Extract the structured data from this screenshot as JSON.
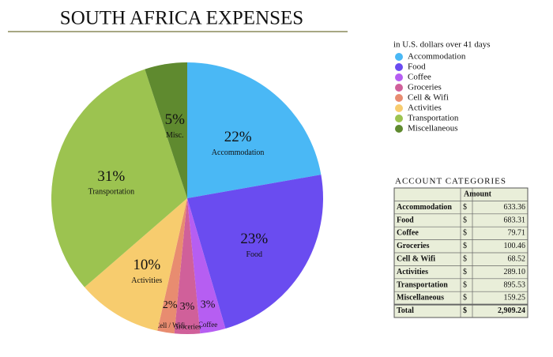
{
  "chart_data": {
    "type": "pie",
    "title": "SOUTH AFRICA EXPENSES",
    "subtitle": "in U.S. dollars over 41 days",
    "categories": [
      "Accommodation",
      "Food",
      "Coffee",
      "Groceries",
      "Cell & Wifi",
      "Activities",
      "Transportation",
      "Miscellaneous"
    ],
    "slice_labels": [
      "Accommodation",
      "Food",
      "Coffee",
      "Groceries",
      "Cell / Wifi",
      "Activities",
      "Transportation",
      "Misc."
    ],
    "values": [
      22,
      23,
      3,
      3,
      2,
      10,
      31,
      5
    ],
    "value_labels": [
      "22%",
      "23%",
      "3%",
      "3%",
      "2%",
      "10%",
      "31%",
      "5%"
    ],
    "colors": [
      "#4ab8f5",
      "#6a4cf0",
      "#b65ef2",
      "#d0609a",
      "#e88c70",
      "#f7cc6e",
      "#9cc350",
      "#5f8a2f"
    ]
  },
  "table": {
    "title": "ACCOUNT CATEGORIES",
    "header": [
      "Amount"
    ],
    "rows": [
      [
        "Accommodation",
        "$",
        "633.36"
      ],
      [
        "Food",
        "$",
        "683.31"
      ],
      [
        "Coffee",
        "$",
        "79.71"
      ],
      [
        "Groceries",
        "$",
        "100.46"
      ],
      [
        "Cell & Wifi",
        "$",
        "68.52"
      ],
      [
        "Activities",
        "$",
        "289.10"
      ],
      [
        "Transportation",
        "$",
        "895.53"
      ],
      [
        "Miscellaneous",
        "$",
        "159.25"
      ],
      [
        "Total",
        "$",
        "2,909.24"
      ]
    ]
  }
}
